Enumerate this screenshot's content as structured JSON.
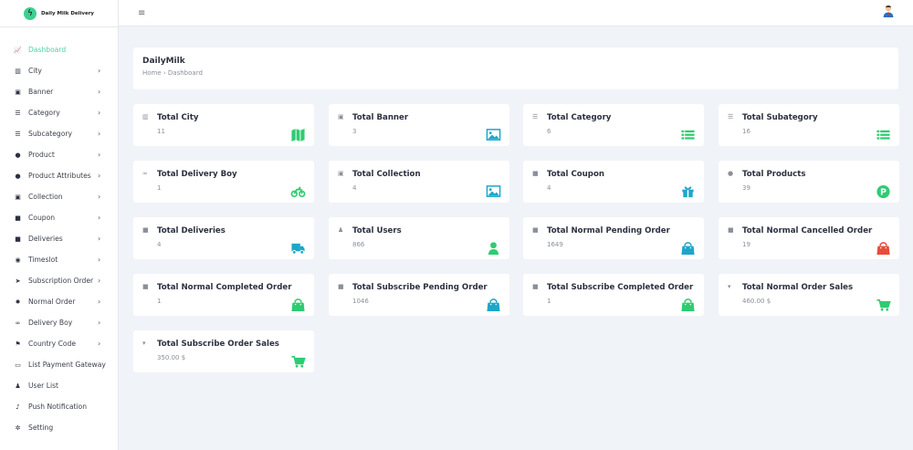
{
  "brand": {
    "name": "Daily Milk Delivery"
  },
  "sidebar": {
    "items": [
      {
        "label": "Dashboard",
        "icon": "chart-line-icon",
        "glyph": "📈",
        "active": true,
        "chevron": false
      },
      {
        "label": "City",
        "icon": "map-icon",
        "glyph": "▥",
        "chevron": true
      },
      {
        "label": "Banner",
        "icon": "image-icon",
        "glyph": "▣",
        "chevron": true
      },
      {
        "label": "Category",
        "icon": "list-icon",
        "glyph": "☰",
        "chevron": true
      },
      {
        "label": "Subcategory",
        "icon": "list-icon",
        "glyph": "☰",
        "chevron": true
      },
      {
        "label": "Product",
        "icon": "product-circle-icon",
        "glyph": "●",
        "chevron": true
      },
      {
        "label": "Product Attributes",
        "icon": "product-circle-icon",
        "glyph": "●",
        "chevron": true
      },
      {
        "label": "Collection",
        "icon": "image-icon",
        "glyph": "▣",
        "chevron": true
      },
      {
        "label": "Coupon",
        "icon": "gift-icon",
        "glyph": "■",
        "chevron": true
      },
      {
        "label": "Deliveries",
        "icon": "truck-icon",
        "glyph": "■",
        "chevron": true
      },
      {
        "label": "Timeslot",
        "icon": "clock-icon",
        "glyph": "◉",
        "chevron": true
      },
      {
        "label": "Subscription Order",
        "icon": "rocket-icon",
        "glyph": "➤",
        "chevron": true
      },
      {
        "label": "Normal Order",
        "icon": "gear-icon",
        "glyph": "✹",
        "chevron": true
      },
      {
        "label": "Delivery Boy",
        "icon": "motorcycle-icon",
        "glyph": "∞",
        "chevron": true
      },
      {
        "label": "Country Code",
        "icon": "flag-icon",
        "glyph": "⚑",
        "chevron": true
      },
      {
        "label": "List Payment Gateway",
        "icon": "credit-card-icon",
        "glyph": "▭",
        "chevron": false
      },
      {
        "label": "User List",
        "icon": "user-icon",
        "glyph": "♟",
        "chevron": false
      },
      {
        "label": "Push Notification",
        "icon": "bell-icon",
        "glyph": "♪",
        "chevron": false
      },
      {
        "label": "Setting",
        "icon": "gear-icon",
        "glyph": "✲",
        "chevron": false
      }
    ],
    "chevron_glyph": "›"
  },
  "header": {
    "menu_glyph": "≡",
    "avatar": "user-avatar-icon"
  },
  "breadcrumb": {
    "title": "DailyMilk",
    "path": "Home › Dashboard"
  },
  "colors": {
    "green": "#2ecc71",
    "cyan": "#1ca7c9",
    "red": "#e74c3c",
    "accent": "#4fd1a5"
  },
  "cards": [
    {
      "title": "Total City",
      "value": "11",
      "small": "▥",
      "icon": "map",
      "color": "green"
    },
    {
      "title": "Total Banner",
      "value": "3",
      "small": "▣",
      "icon": "image",
      "color": "cyan"
    },
    {
      "title": "Total Category",
      "value": "6",
      "small": "☰",
      "icon": "list",
      "color": "green"
    },
    {
      "title": "Total Subategory",
      "value": "16",
      "small": "☰",
      "icon": "list",
      "color": "green"
    },
    {
      "title": "Total Delivery Boy",
      "value": "1",
      "small": "∞",
      "icon": "motorcycle",
      "color": "green"
    },
    {
      "title": "Total Collection",
      "value": "4",
      "small": "▣",
      "icon": "image",
      "color": "cyan"
    },
    {
      "title": "Total Coupon",
      "value": "4",
      "small": "■",
      "icon": "gift",
      "color": "cyan"
    },
    {
      "title": "Total Products",
      "value": "39",
      "small": "●",
      "icon": "product-p",
      "color": "green"
    },
    {
      "title": "Total Deliveries",
      "value": "4",
      "small": "■",
      "icon": "truck",
      "color": "cyan"
    },
    {
      "title": "Total Users",
      "value": "866",
      "small": "♟",
      "icon": "user",
      "color": "green"
    },
    {
      "title": "Total Normal Pending Order",
      "value": "1649",
      "small": "■",
      "icon": "shopping-bag",
      "color": "cyan"
    },
    {
      "title": "Total Normal Cancelled Order",
      "value": "19",
      "small": "■",
      "icon": "shopping-bag",
      "color": "red"
    },
    {
      "title": "Total Normal Completed Order",
      "value": "1",
      "small": "■",
      "icon": "shopping-bag",
      "color": "green"
    },
    {
      "title": "Total Subscribe Pending Order",
      "value": "1046",
      "small": "■",
      "icon": "shopping-bag",
      "color": "cyan"
    },
    {
      "title": "Total Subscribe Completed Order",
      "value": "1",
      "small": "■",
      "icon": "shopping-bag",
      "color": "green"
    },
    {
      "title": "Total Normal Order Sales",
      "value": "460.00 $",
      "small": "▾",
      "icon": "cart",
      "color": "green"
    },
    {
      "title": "Total Subscribe Order Sales",
      "value": "350.00 $",
      "small": "▾",
      "icon": "cart",
      "color": "green"
    }
  ]
}
